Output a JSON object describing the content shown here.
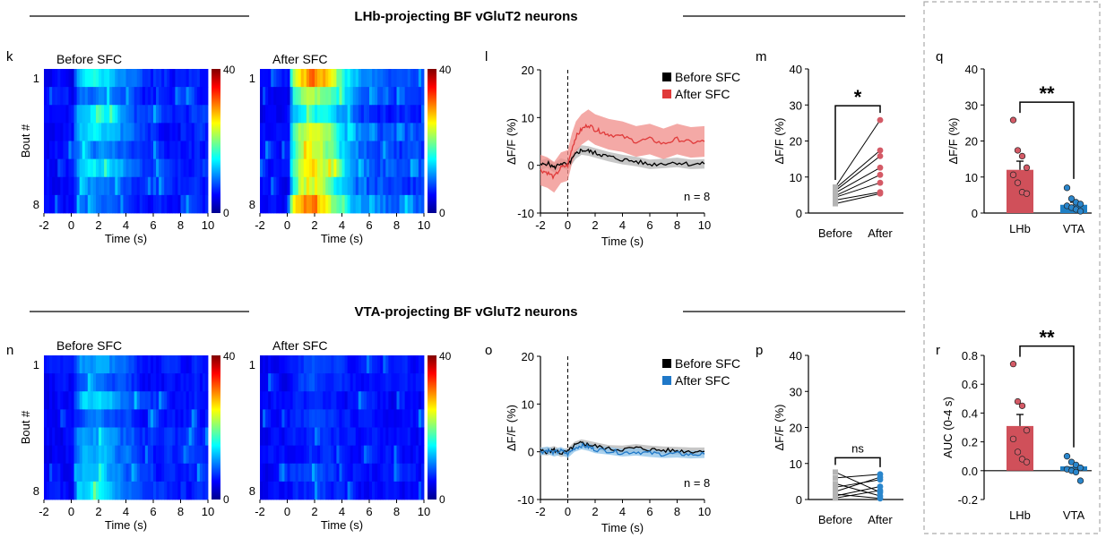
{
  "figure": {
    "section_titles": [
      "LHb-projecting BF vGluT2 neurons",
      "VTA-projecting BF vGluT2 neurons"
    ],
    "panel_letters": [
      "k",
      "l",
      "m",
      "q",
      "n",
      "o",
      "p",
      "r"
    ]
  },
  "colors": {
    "black": "#000000",
    "red": "#e03a3a",
    "red_band": "#f08c88",
    "blue": "#1f78c8",
    "blue_band": "#8ec3ea",
    "gray": "#b4b4b4",
    "bar_red": "#d0505a",
    "bar_blue": "#1f7fc4",
    "dot_red": "#d45a66",
    "dot_blue": "#2a86cc",
    "dashed_box": "#aaaaaa"
  },
  "chart_data": [
    {
      "id": "k1",
      "type": "heatmap",
      "panel": "k",
      "title": "Before SFC",
      "xlabel": "Time (s)",
      "ylabel": "Bout #",
      "x_ticks": [
        "-2",
        "0",
        "2",
        "4",
        "6",
        "8",
        "10"
      ],
      "xlim": [
        -2,
        10
      ],
      "y_ticks": [
        "1",
        "8"
      ],
      "rows": 8,
      "clim": [
        0,
        40
      ],
      "colorbar_ticks": [
        "40",
        "0"
      ],
      "response_level": 6,
      "seed": 11
    },
    {
      "id": "k2",
      "type": "heatmap",
      "panel": "k",
      "title": "After SFC",
      "xlabel": "Time (s)",
      "ylabel": "",
      "x_ticks": [
        "-2",
        "0",
        "2",
        "4",
        "6",
        "8",
        "10"
      ],
      "xlim": [
        -2,
        10
      ],
      "y_ticks": [
        "1",
        "8"
      ],
      "rows": 8,
      "clim": [
        0,
        40
      ],
      "colorbar_ticks": [
        "40",
        "0"
      ],
      "response_level": 15,
      "seed": 23
    },
    {
      "id": "n1",
      "type": "heatmap",
      "panel": "n",
      "title": "Before SFC",
      "xlabel": "Time (s)",
      "ylabel": "Bout #",
      "x_ticks": [
        "-2",
        "0",
        "2",
        "4",
        "6",
        "8",
        "10"
      ],
      "xlim": [
        -2,
        10
      ],
      "y_ticks": [
        "1",
        "8"
      ],
      "rows": 8,
      "clim": [
        0,
        40
      ],
      "colorbar_ticks": [
        "40",
        "0"
      ],
      "response_level": 5,
      "seed": 37
    },
    {
      "id": "n2",
      "type": "heatmap",
      "panel": "n",
      "title": "After SFC",
      "xlabel": "Time (s)",
      "ylabel": "",
      "x_ticks": [
        "-2",
        "0",
        "2",
        "4",
        "6",
        "8",
        "10"
      ],
      "xlim": [
        -2,
        10
      ],
      "y_ticks": [
        "1",
        "8"
      ],
      "rows": 8,
      "clim": [
        0,
        40
      ],
      "colorbar_ticks": [
        "40",
        "0"
      ],
      "response_level": 1.5,
      "seed": 41
    },
    {
      "id": "l",
      "type": "line",
      "panel": "l",
      "xlabel": "Time (s)",
      "ylabel": "ΔF/F (%)",
      "xlim": [
        -2,
        10
      ],
      "ylim": [
        -10,
        20
      ],
      "x_ticks": [
        -2,
        0,
        2,
        4,
        6,
        8,
        10
      ],
      "y_ticks": [
        -10,
        0,
        10,
        20
      ],
      "annotation": "n = 8",
      "event_line_x": 0,
      "legend": [
        "Before SFC",
        "After SFC"
      ],
      "series": [
        {
          "name": "Before SFC",
          "color_key": "black",
          "band_key": "gray",
          "sem": 1.0,
          "x": [
            -2,
            -1.5,
            -1,
            -0.5,
            0,
            0.3,
            0.6,
            1,
            1.5,
            2,
            2.5,
            3,
            4,
            5,
            6,
            7,
            8,
            9,
            10
          ],
          "y": [
            0,
            0.5,
            -0.5,
            0.5,
            0,
            1.2,
            2.4,
            3.2,
            3,
            2.6,
            2.2,
            1.8,
            1.2,
            0.8,
            0.2,
            0.4,
            0.6,
            0.2,
            0.3
          ]
        },
        {
          "name": "After SFC",
          "color_key": "red",
          "band_key": "red_band",
          "sem": 3.2,
          "x": [
            -2,
            -1.5,
            -1,
            -0.5,
            0,
            0.3,
            0.6,
            1,
            1.5,
            2,
            2.5,
            3,
            4,
            5,
            6,
            7,
            8,
            9,
            10
          ],
          "y": [
            -1,
            -1.5,
            -2.5,
            -0.5,
            0,
            3.5,
            6,
            7.5,
            8.5,
            7.5,
            7,
            6.5,
            6,
            5,
            5.5,
            4.5,
            5.5,
            4.8,
            5
          ]
        }
      ]
    },
    {
      "id": "o",
      "type": "line",
      "panel": "o",
      "xlabel": "Time (s)",
      "ylabel": "ΔF/F (%)",
      "xlim": [
        -2,
        10
      ],
      "ylim": [
        -10,
        20
      ],
      "x_ticks": [
        -2,
        0,
        2,
        4,
        6,
        8,
        10
      ],
      "y_ticks": [
        -10,
        0,
        10,
        20
      ],
      "annotation": "n = 8",
      "event_line_x": 0,
      "legend": [
        "Before SFC",
        "After SFC"
      ],
      "series": [
        {
          "name": "Before SFC",
          "color_key": "black",
          "band_key": "gray",
          "sem": 0.8,
          "x": [
            -2,
            -1.5,
            -1,
            -0.5,
            0,
            0.5,
            1,
            1.5,
            2,
            3,
            4,
            5,
            6,
            7,
            8,
            9,
            10
          ],
          "y": [
            0.2,
            0,
            0.4,
            -0.3,
            0,
            1.3,
            1.8,
            1.5,
            1.2,
            0.6,
            0.5,
            0.8,
            0.5,
            0.3,
            0.2,
            0.1,
            0.1
          ]
        },
        {
          "name": "After SFC",
          "color_key": "blue",
          "band_key": "blue_band",
          "sem": 0.8,
          "x": [
            -2,
            -1.5,
            -1,
            -0.5,
            0,
            0.5,
            1,
            1.5,
            2,
            3,
            4,
            5,
            6,
            7,
            8,
            9,
            10
          ],
          "y": [
            0,
            0.3,
            -0.2,
            0.2,
            -0.5,
            0.8,
            1.3,
            1,
            0.5,
            0.2,
            -0.2,
            0,
            -0.3,
            -0.5,
            -0.4,
            -0.6,
            -0.5
          ]
        }
      ]
    },
    {
      "id": "m",
      "type": "paired_scatter",
      "panel": "m",
      "ylabel": "ΔF/F (%)",
      "ylim": [
        0,
        40
      ],
      "y_ticks": [
        0,
        10,
        20,
        30,
        40
      ],
      "categories": [
        "Before",
        "After"
      ],
      "before": [
        7.2,
        6.8,
        6.2,
        5.6,
        4.8,
        4.4,
        3.6,
        2.6
      ],
      "after": [
        25.8,
        17.4,
        15.8,
        12.6,
        10.6,
        8.4,
        5.8,
        5.4
      ],
      "before_color_key": "gray",
      "after_color_key": "dot_red",
      "significance": "*"
    },
    {
      "id": "p",
      "type": "paired_scatter",
      "panel": "p",
      "ylabel": "ΔF/F (%)",
      "ylim": [
        0,
        40
      ],
      "y_ticks": [
        0,
        10,
        20,
        30,
        40
      ],
      "categories": [
        "Before",
        "After"
      ],
      "before": [
        7.6,
        6,
        4.4,
        3.4,
        2.2,
        1.5,
        1,
        0.4
      ],
      "after": [
        2,
        7,
        1,
        5.5,
        6.2,
        0.3,
        3.6,
        2.5
      ],
      "before_color_key": "gray",
      "after_color_key": "dot_blue",
      "significance": "ns"
    },
    {
      "id": "q",
      "type": "bar",
      "panel": "q",
      "ylabel": "ΔF/F (%)",
      "ylim": [
        0,
        40
      ],
      "y_ticks": [
        "0",
        "10",
        "20",
        "30",
        "40"
      ],
      "categories": [
        "LHb",
        "VTA"
      ],
      "values": [
        12,
        2.3
      ],
      "sem": [
        2.4,
        0.7
      ],
      "points": [
        [
          25.8,
          17.4,
          15.8,
          12.6,
          10.6,
          8.4,
          5.8,
          5.4
        ],
        [
          7,
          4,
          3,
          2.5,
          2,
          1.5,
          1,
          0.5
        ]
      ],
      "bar_color_keys": [
        "bar_red",
        "bar_blue"
      ],
      "dot_color_keys": [
        "dot_red",
        "dot_blue"
      ],
      "significance": "**"
    },
    {
      "id": "r",
      "type": "bar",
      "panel": "r",
      "ylabel": "AUC (0-4 s)",
      "ylim": [
        -0.2,
        0.8
      ],
      "y_ticks": [
        "-0.2",
        "0.0",
        "0.2",
        "0.4",
        "0.6",
        "0.8"
      ],
      "categories": [
        "LHb",
        "VTA"
      ],
      "values": [
        0.31,
        0.03
      ],
      "sem": [
        0.08,
        0.02
      ],
      "points": [
        [
          0.74,
          0.48,
          0.45,
          0.28,
          0.22,
          0.13,
          0.08,
          0.06
        ],
        [
          0.1,
          0.06,
          0.04,
          0.02,
          0.01,
          0,
          -0.01,
          -0.07
        ]
      ],
      "bar_color_keys": [
        "bar_red",
        "bar_blue"
      ],
      "dot_color_keys": [
        "dot_red",
        "dot_blue"
      ],
      "significance": "**"
    }
  ]
}
